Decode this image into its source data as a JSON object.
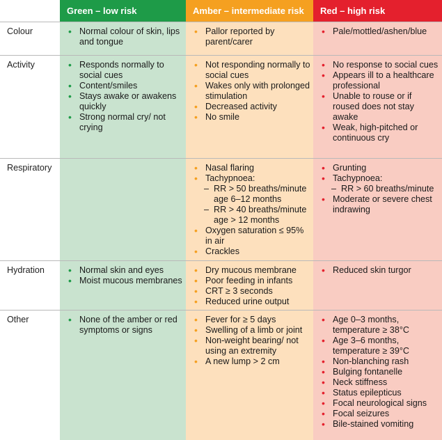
{
  "headers": {
    "green": "Green – low risk",
    "amber": "Amber – intermediate risk",
    "red": "Red – high risk"
  },
  "rows": {
    "colour": {
      "label": "Colour",
      "green": [
        "Normal colour of skin, lips and tongue"
      ],
      "amber": [
        "Pallor reported by parent/carer"
      ],
      "red": [
        "Pale/mottled/ashen/blue"
      ]
    },
    "activity": {
      "label": "Activity",
      "green": [
        "Responds normally to social cues",
        "Content/smiles",
        "Stays awake or awakens quickly",
        "Strong normal cry/ not crying"
      ],
      "amber": [
        "Not responding normally to social cues",
        "Wakes only with prolonged stimulation",
        "Decreased activity",
        "No smile"
      ],
      "red": [
        "No response to social cues",
        "Appears ill to a healthcare professional",
        "Unable to rouse or if roused does not stay awake",
        "Weak, high-pitched or continuous cry"
      ]
    },
    "respiratory": {
      "label": "Respiratory",
      "amber": {
        "nasal": "Nasal flaring",
        "tachy": "Tachypnoea:",
        "tachy_sub": [
          "RR > 50 breaths/minute age 6–12 months",
          "RR > 40 breaths/minute age > 12 months"
        ],
        "oxygen": "Oxygen saturation ≤ 95% in air",
        "crackles": "Crackles"
      },
      "red": {
        "grunting": "Grunting",
        "tachy": "Tachypnoea:",
        "tachy_sub": [
          "RR > 60 breaths/minute"
        ],
        "chest": "Moderate or severe chest indrawing"
      }
    },
    "hydration": {
      "label": "Hydration",
      "green": [
        "Normal skin and eyes",
        "Moist mucous membranes"
      ],
      "amber": [
        "Dry mucous membrane",
        "Poor feeding in infants",
        "CRT ≥ 3 seconds",
        "Reduced urine output"
      ],
      "red": [
        "Reduced skin turgor"
      ]
    },
    "other": {
      "label": "Other",
      "green": [
        "None of the amber or red symptoms or signs"
      ],
      "amber": [
        "Fever for ≥ 5 days",
        "Swelling of a limb or joint",
        "Non-weight bearing/ not using an extremity",
        "A new lump > 2 cm"
      ],
      "red": [
        "Age 0–3 months, temperature ≥ 38°C",
        "Age 3–6 months, temperature ≥ 39°C",
        "Non-blanching rash",
        "Bulging fontanelle",
        "Neck stiffness",
        "Status epilepticus",
        "Focal neurological signs",
        "Focal seizures",
        "Bile-stained vomiting"
      ]
    }
  }
}
